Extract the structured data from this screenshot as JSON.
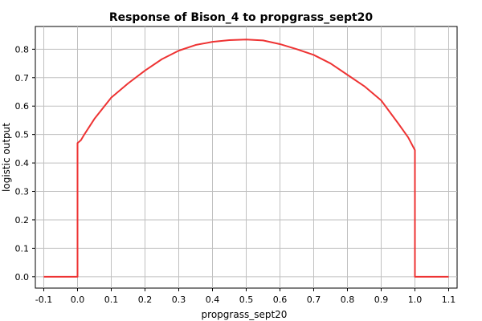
{
  "chart_data": {
    "type": "line",
    "title": "Response of Bison_4 to propgrass_sept20",
    "xlabel": "propgrass_sept20",
    "ylabel": "logistic output",
    "xlim": [
      -0.125,
      1.125
    ],
    "ylim": [
      -0.04,
      0.88
    ],
    "x_ticks": [
      "-0.1",
      "0.0",
      "0.1",
      "0.2",
      "0.3",
      "0.4",
      "0.5",
      "0.6",
      "0.7",
      "0.8",
      "0.9",
      "1.0",
      "1.1"
    ],
    "y_ticks": [
      "0.0",
      "0.1",
      "0.2",
      "0.3",
      "0.4",
      "0.5",
      "0.6",
      "0.7",
      "0.8"
    ],
    "grid": true,
    "series": [
      {
        "color": "#ee3333",
        "x": [
          -0.1,
          0.0,
          0.0,
          0.01,
          0.02,
          0.05,
          0.1,
          0.15,
          0.2,
          0.25,
          0.3,
          0.35,
          0.4,
          0.45,
          0.5,
          0.55,
          0.6,
          0.65,
          0.7,
          0.75,
          0.8,
          0.85,
          0.9,
          0.95,
          0.98,
          1.0,
          1.0,
          1.1
        ],
        "y": [
          0.0,
          0.0,
          0.47,
          0.48,
          0.5,
          0.555,
          0.63,
          0.68,
          0.725,
          0.765,
          0.795,
          0.815,
          0.826,
          0.832,
          0.834,
          0.831,
          0.818,
          0.8,
          0.78,
          0.75,
          0.71,
          0.67,
          0.62,
          0.54,
          0.49,
          0.445,
          0.0,
          0.0
        ]
      }
    ]
  }
}
